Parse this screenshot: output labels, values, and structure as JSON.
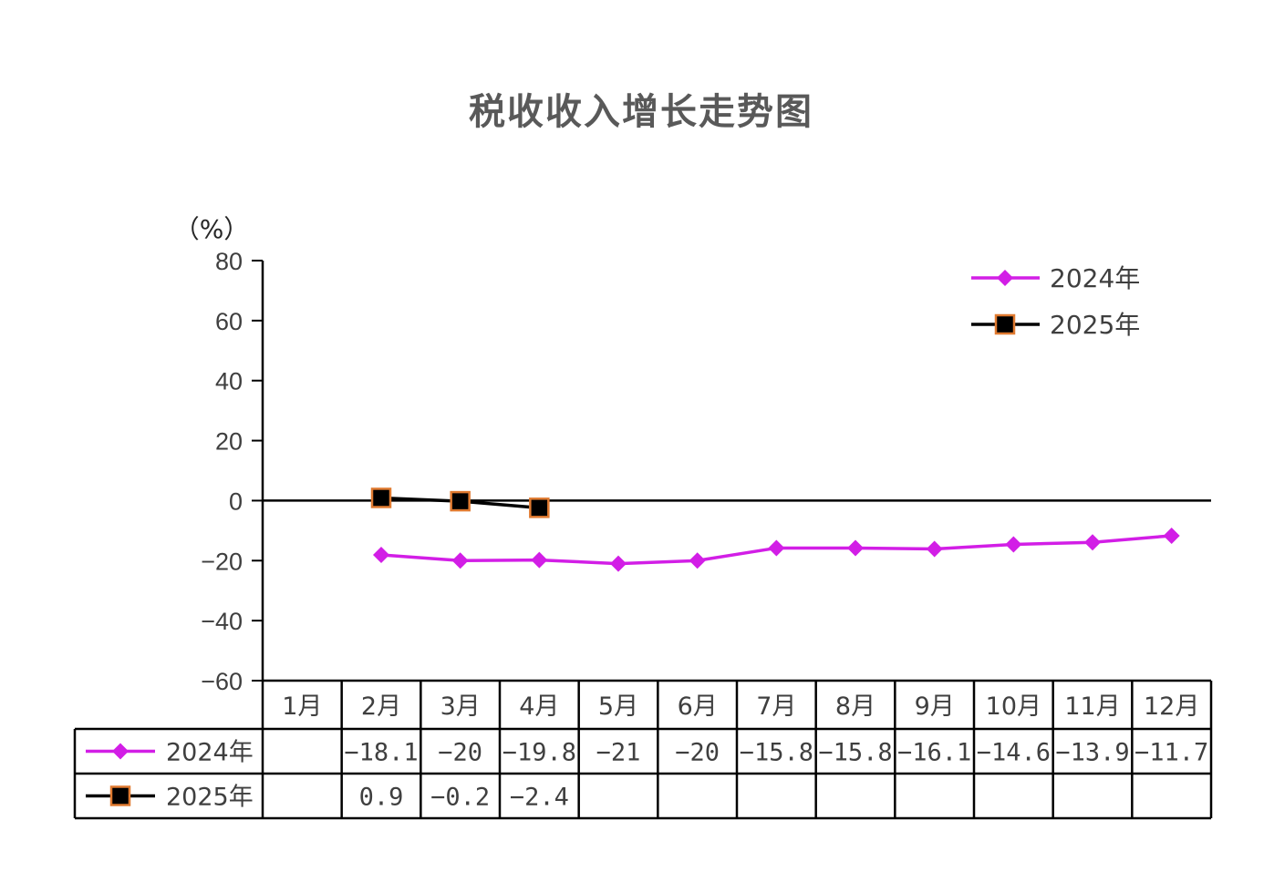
{
  "chart_data": {
    "type": "line",
    "title": "税收收入增长走势图",
    "unit_label": "（%）",
    "ylim": [
      -60,
      80
    ],
    "yticks": [
      80,
      60,
      40,
      20,
      0,
      -20,
      -40,
      -60
    ],
    "ytick_labels": [
      "80",
      "60",
      "40",
      "20",
      "0",
      "−20",
      "−40",
      "−60"
    ],
    "categories": [
      "1月",
      "2月",
      "3月",
      "4月",
      "5月",
      "6月",
      "7月",
      "8月",
      "9月",
      "10月",
      "11月",
      "12月"
    ],
    "legend_position": "top-right",
    "zero_line": true,
    "series": [
      {
        "name": "2024年",
        "color": "#d21ee6",
        "marker": "diamond",
        "values": [
          null,
          -18.1,
          -20,
          -19.8,
          -21,
          -20,
          -15.8,
          -15.8,
          -16.1,
          -14.6,
          -13.9,
          -11.7
        ],
        "table_labels": [
          "",
          "−18.1",
          "−20",
          "−19.8",
          "−21",
          "−20",
          "−15.8",
          "−15.8",
          "−16.1",
          "−14.6",
          "−13.9",
          "−11.7"
        ]
      },
      {
        "name": "2025年",
        "color": "#000000",
        "marker": "square",
        "marker_edge_color": "#e07a30",
        "values": [
          null,
          0.9,
          -0.2,
          -2.4,
          null,
          null,
          null,
          null,
          null,
          null,
          null,
          null
        ],
        "table_labels": [
          "",
          "0.9",
          "−0.2",
          "−2.4",
          "",
          "",
          "",
          "",
          "",
          "",
          "",
          ""
        ]
      }
    ]
  }
}
